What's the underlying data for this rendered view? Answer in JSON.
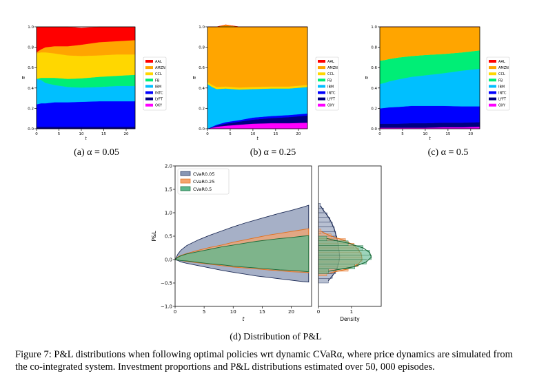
{
  "figure": {
    "caption_prefix": "Figure 7:",
    "caption_text": "P&L distributions when following optimal policies wrt dynamic CVaRα, where price dynamics are simulated from the co-integrated system. Investment proportions and P&L distributions estimated over 50, 000 episodes.",
    "subcaptions": [
      "(a) α = 0.05",
      "(b) α = 0.25",
      "(c) α = 0.5",
      "(d) Distribution of P&L"
    ]
  },
  "colors": {
    "AAL": "#ff0000",
    "AMZN": "#ffa500",
    "CCL": "#ffd700",
    "FB": "#00ee76",
    "IBM": "#00bfff",
    "INTC": "#0000ff",
    "LYFT": "#000080",
    "OXY": "#ff00ff",
    "CVaR0.05": "#8896b4",
    "CVaR0.25": "#f4a46e",
    "CVaR0.5": "#5cb88e"
  },
  "chart_data": [
    {
      "type": "area",
      "title": "",
      "ylabel": "π_t^(i)",
      "xlabel": "t",
      "xlim": [
        0,
        22
      ],
      "ylim": [
        0,
        1
      ],
      "xticks": [
        "0",
        "5",
        "10",
        "15",
        "20"
      ],
      "yticks": [
        "0.0",
        "0.2",
        "0.4",
        "0.6",
        "0.8",
        "1.0"
      ],
      "legend": [
        "AAL",
        "AMZN",
        "CCL",
        "FB",
        "IBM",
        "INTC",
        "LYFT",
        "OXY"
      ],
      "legend_position": "right",
      "x": [
        0,
        1,
        2,
        4,
        7,
        10,
        14,
        18,
        22
      ],
      "series": [
        {
          "name": "OXY",
          "values": [
            0,
            0,
            0,
            0,
            0,
            0,
            0,
            0,
            0
          ]
        },
        {
          "name": "LYFT",
          "values": [
            0.02,
            0.02,
            0.02,
            0.02,
            0.02,
            0.02,
            0.02,
            0.02,
            0.02
          ]
        },
        {
          "name": "INTC",
          "values": [
            0.22,
            0.23,
            0.23,
            0.24,
            0.24,
            0.245,
            0.25,
            0.25,
            0.25
          ]
        },
        {
          "name": "IBM",
          "values": [
            0.25,
            0.23,
            0.2,
            0.17,
            0.15,
            0.14,
            0.14,
            0.15,
            0.15
          ]
        },
        {
          "name": "FB",
          "values": [
            0,
            0.02,
            0.05,
            0.07,
            0.08,
            0.09,
            0.1,
            0.1,
            0.11
          ]
        },
        {
          "name": "CCL",
          "values": [
            0.25,
            0.25,
            0.25,
            0.24,
            0.23,
            0.22,
            0.21,
            0.21,
            0.2
          ]
        },
        {
          "name": "AMZN",
          "values": [
            0.01,
            0.03,
            0.05,
            0.07,
            0.09,
            0.11,
            0.13,
            0.13,
            0.14
          ]
        },
        {
          "name": "AAL",
          "values": [
            0.25,
            0.22,
            0.2,
            0.19,
            0.19,
            0.165,
            0.15,
            0.14,
            0.13
          ]
        }
      ]
    },
    {
      "type": "area",
      "title": "",
      "ylabel": "π_t^(i)",
      "xlabel": "t",
      "xlim": [
        0,
        22
      ],
      "ylim": [
        0,
        1
      ],
      "xticks": [
        "0",
        "5",
        "10",
        "15",
        "20"
      ],
      "yticks": [
        "0.0",
        "0.2",
        "0.4",
        "0.6",
        "0.8",
        "1.0"
      ],
      "legend": [
        "AAL",
        "AMZN",
        "CCL",
        "FB",
        "IBM",
        "INTC",
        "LYFT",
        "OXY"
      ],
      "legend_position": "right",
      "x": [
        0,
        1,
        2,
        4,
        7,
        10,
        14,
        18,
        22
      ],
      "series": [
        {
          "name": "OXY",
          "values": [
            0,
            0.01,
            0.02,
            0.03,
            0.04,
            0.05,
            0.055,
            0.055,
            0.06
          ]
        },
        {
          "name": "LYFT",
          "values": [
            0,
            0.005,
            0.01,
            0.02,
            0.03,
            0.04,
            0.05,
            0.06,
            0.07
          ]
        },
        {
          "name": "INTC",
          "values": [
            0,
            0.005,
            0.01,
            0.015,
            0.015,
            0.02,
            0.02,
            0.02,
            0.02
          ]
        },
        {
          "name": "IBM",
          "values": [
            0.44,
            0.39,
            0.35,
            0.33,
            0.3,
            0.28,
            0.27,
            0.26,
            0.26
          ]
        },
        {
          "name": "FB",
          "values": [
            0,
            0,
            0,
            0,
            0,
            0,
            0,
            0,
            0
          ]
        },
        {
          "name": "CCL",
          "values": [
            0.02,
            0.02,
            0.02,
            0.02,
            0.02,
            0.02,
            0.02,
            0.02,
            0.02
          ]
        },
        {
          "name": "AMZN",
          "values": [
            0.54,
            0.57,
            0.59,
            0.605,
            0.595,
            0.59,
            0.585,
            0.585,
            0.57
          ]
        },
        {
          "name": "AAL",
          "values": [
            0,
            0,
            0,
            0,
            0,
            0,
            0,
            0,
            0
          ]
        }
      ]
    },
    {
      "type": "area",
      "title": "",
      "ylabel": "π_t^(i)",
      "xlabel": "t",
      "xlim": [
        0,
        22
      ],
      "ylim": [
        0,
        1
      ],
      "xticks": [
        "0",
        "5",
        "10",
        "15",
        "20"
      ],
      "yticks": [
        "0.0",
        "0.2",
        "0.4",
        "0.6",
        "0.8",
        "1.0"
      ],
      "legend": [
        "AAL",
        "AMZN",
        "CCL",
        "FB",
        "IBM",
        "INTC",
        "LYFT",
        "OXY"
      ],
      "legend_position": "right",
      "x": [
        0,
        1,
        2,
        4,
        7,
        10,
        14,
        18,
        22
      ],
      "series": [
        {
          "name": "OXY",
          "values": [
            0.01,
            0.01,
            0.01,
            0.01,
            0.01,
            0.01,
            0.015,
            0.015,
            0.02
          ]
        },
        {
          "name": "LYFT",
          "values": [
            0.04,
            0.04,
            0.04,
            0.04,
            0.045,
            0.045,
            0.045,
            0.045,
            0.045
          ]
        },
        {
          "name": "INTC",
          "values": [
            0.15,
            0.155,
            0.16,
            0.165,
            0.17,
            0.17,
            0.165,
            0.16,
            0.155
          ]
        },
        {
          "name": "IBM",
          "values": [
            0.24,
            0.245,
            0.255,
            0.27,
            0.285,
            0.3,
            0.32,
            0.35,
            0.37
          ]
        },
        {
          "name": "FB",
          "values": [
            0.23,
            0.225,
            0.22,
            0.215,
            0.205,
            0.2,
            0.19,
            0.18,
            0.18
          ]
        },
        {
          "name": "CCL",
          "values": [
            0,
            0,
            0,
            0,
            0,
            0,
            0,
            0,
            0
          ]
        },
        {
          "name": "AMZN",
          "values": [
            0.33,
            0.325,
            0.315,
            0.3,
            0.285,
            0.275,
            0.265,
            0.25,
            0.23
          ]
        },
        {
          "name": "AAL",
          "values": [
            0,
            0,
            0,
            0,
            0,
            0,
            0,
            0,
            0
          ]
        }
      ]
    },
    {
      "type": "area",
      "title": "",
      "ylabel": "P&L",
      "xlabel": "t",
      "xlim": [
        0,
        23.5
      ],
      "ylim": [
        -1.0,
        2.0
      ],
      "xticks": [
        "0",
        "5",
        "10",
        "15",
        "20"
      ],
      "yticks": [
        "−1.0",
        "−0.5",
        "0.0",
        "0.5",
        "1.0",
        "1.5",
        "2.0"
      ],
      "legend": [
        "CVaR0.05",
        "CVaR0.25",
        "CVaR0.5"
      ],
      "legend_position": "upper left",
      "x": [
        0,
        0.5,
        1,
        2,
        4,
        6,
        8,
        10,
        12,
        14,
        16,
        18,
        20,
        22,
        23
      ],
      "series": [
        {
          "name": "CVaR0.05",
          "upper": [
            0,
            0.12,
            0.2,
            0.3,
            0.42,
            0.52,
            0.61,
            0.7,
            0.78,
            0.85,
            0.92,
            0.99,
            1.05,
            1.12,
            1.16
          ],
          "lower": [
            0,
            -0.02,
            -0.05,
            -0.08,
            -0.13,
            -0.18,
            -0.23,
            -0.27,
            -0.31,
            -0.35,
            -0.38,
            -0.41,
            -0.44,
            -0.47,
            -0.48
          ]
        },
        {
          "name": "CVaR0.25",
          "upper": [
            0,
            0.06,
            0.09,
            0.13,
            0.2,
            0.26,
            0.31,
            0.37,
            0.42,
            0.47,
            0.52,
            0.56,
            0.6,
            0.64,
            0.66
          ],
          "lower": [
            0,
            -0.01,
            -0.02,
            -0.04,
            -0.07,
            -0.1,
            -0.13,
            -0.16,
            -0.18,
            -0.2,
            -0.22,
            -0.24,
            -0.26,
            -0.27,
            -0.28
          ]
        },
        {
          "name": "CVaR0.5",
          "upper": [
            0,
            0.05,
            0.08,
            0.12,
            0.17,
            0.22,
            0.27,
            0.31,
            0.35,
            0.39,
            0.42,
            0.45,
            0.47,
            0.5,
            0.51
          ],
          "lower": [
            0,
            -0.01,
            -0.02,
            -0.03,
            -0.06,
            -0.09,
            -0.11,
            -0.14,
            -0.16,
            -0.18,
            -0.2,
            -0.22,
            -0.23,
            -0.25,
            -0.26
          ]
        }
      ]
    },
    {
      "type": "bar",
      "title": "",
      "xlabel": "Density",
      "ylabel": "",
      "orientation": "horizontal",
      "xlim": [
        0,
        1.9
      ],
      "ylim": [
        -1.0,
        2.0
      ],
      "xticks": [
        "0",
        "1"
      ],
      "series": [
        {
          "name": "CVaR0.05",
          "y": [
            -0.45,
            -0.35,
            -0.25,
            -0.15,
            -0.05,
            0.05,
            0.15,
            0.25,
            0.35,
            0.45,
            0.55,
            0.65,
            0.75,
            0.85,
            0.95,
            1.05,
            1.15
          ],
          "density": [
            0.3,
            0.42,
            0.52,
            0.58,
            0.62,
            0.64,
            0.63,
            0.61,
            0.59,
            0.56,
            0.52,
            0.48,
            0.42,
            0.35,
            0.26,
            0.15,
            0.06
          ]
        },
        {
          "name": "CVaR0.25",
          "y": [
            -0.3,
            -0.2,
            -0.1,
            0.0,
            0.1,
            0.2,
            0.3,
            0.4,
            0.5,
            0.6
          ],
          "density": [
            0.25,
            0.9,
            1.2,
            1.32,
            1.3,
            1.22,
            1.08,
            0.82,
            0.38,
            0.08
          ]
        },
        {
          "name": "CVaR0.5",
          "y": [
            -0.25,
            -0.15,
            -0.05,
            0.05,
            0.15,
            0.25,
            0.35,
            0.45
          ],
          "density": [
            0.3,
            1.1,
            1.45,
            1.6,
            1.55,
            1.35,
            0.9,
            0.25
          ]
        }
      ]
    }
  ]
}
